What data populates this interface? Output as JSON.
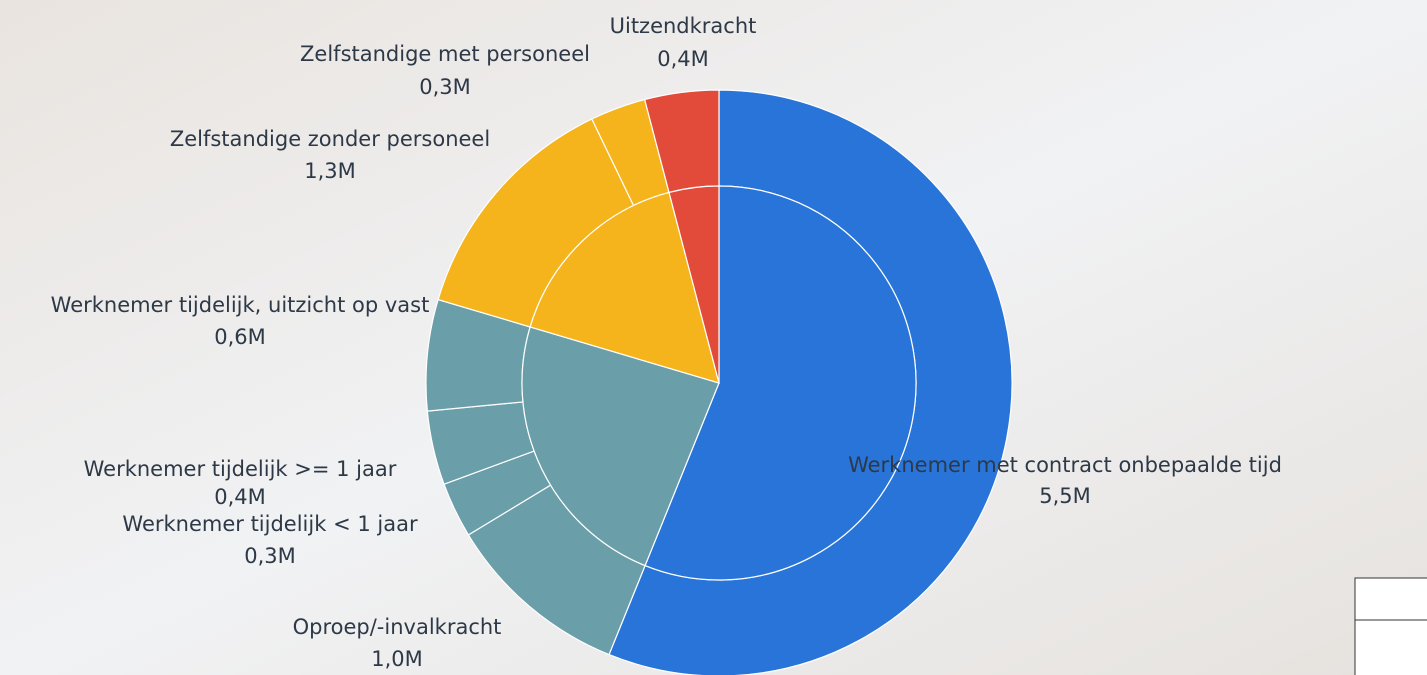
{
  "chart_data": {
    "type": "pie",
    "categories": [
      "Werknemer met contract onbepaalde tijd",
      "Oproep/-invalkracht",
      "Werknemer tijdelijk < 1 jaar",
      "Werknemer tijdelijk >= 1 jaar",
      "Werknemer tijdelijk, uitzicht op vast",
      "Zelfstandige zonder personeel",
      "Zelfstandige met personeel",
      "Uitzendkracht"
    ],
    "values": [
      5.5,
      1.0,
      0.3,
      0.4,
      0.6,
      1.3,
      0.3,
      0.4
    ],
    "value_labels": [
      "5,5M",
      "1,0M",
      "0,3M",
      "0,4M",
      "0,6M",
      "1,3M",
      "0,3M",
      "0,4M"
    ],
    "colors": [
      "#2874d9",
      "#6a9ea9",
      "#6a9ea9",
      "#6a9ea9",
      "#6a9ea9",
      "#f5b41c",
      "#f5b41c",
      "#e24b39"
    ]
  }
}
